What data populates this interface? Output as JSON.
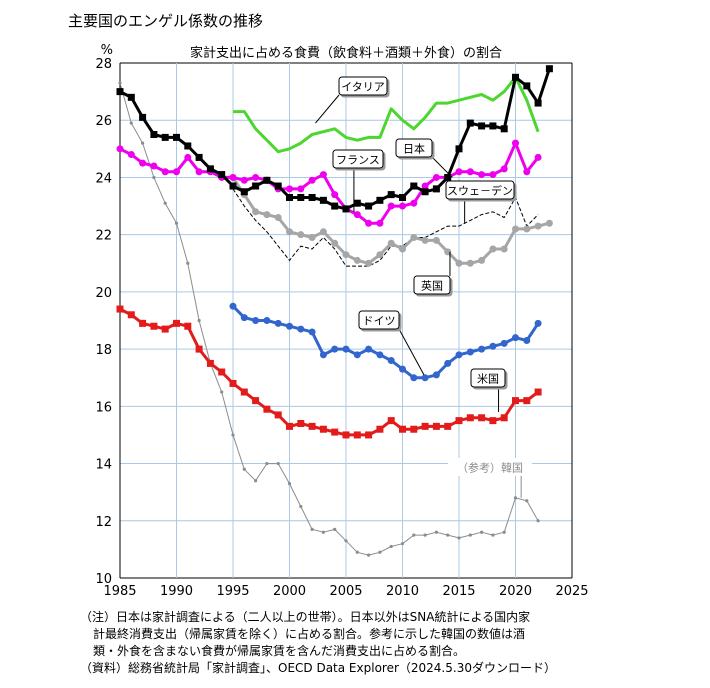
{
  "title": "主要国のエンゲル係数の推移",
  "chart_data": {
    "type": "line",
    "subtitle": "家計支出に占める食費（飲食料＋酒類＋外食）の割合",
    "ylabel": "%",
    "xlabel": "",
    "xlim": [
      1985,
      2025
    ],
    "ylim": [
      10,
      28
    ],
    "xticks": [
      "1985",
      "1990",
      "1995",
      "2000",
      "2005",
      "2010",
      "2015",
      "2020",
      "2025"
    ],
    "yticks": [
      "10",
      "12",
      "14",
      "16",
      "18",
      "20",
      "22",
      "24",
      "26",
      "28"
    ],
    "grid": true,
    "series": [
      {
        "name": "日本",
        "color": "#000000",
        "marker": "square",
        "x": [
          1985,
          1986,
          1987,
          1988,
          1989,
          1990,
          1991,
          1992,
          1993,
          1994,
          1995,
          1996,
          1997,
          1998,
          1999,
          2000,
          2001,
          2002,
          2003,
          2004,
          2005,
          2006,
          2007,
          2008,
          2009,
          2010,
          2011,
          2012,
          2013,
          2014,
          2015,
          2016,
          2017,
          2018,
          2019,
          2020,
          2021,
          2022,
          2023
        ],
        "y": [
          27.0,
          26.8,
          26.1,
          25.5,
          25.4,
          25.4,
          25.1,
          24.7,
          24.3,
          24.1,
          23.7,
          23.5,
          23.7,
          23.9,
          23.7,
          23.3,
          23.3,
          23.3,
          23.2,
          23.0,
          22.9,
          23.1,
          23.0,
          23.2,
          23.4,
          23.3,
          23.7,
          23.5,
          23.6,
          24.0,
          25.0,
          25.9,
          25.8,
          25.8,
          25.7,
          27.5,
          27.2,
          26.6,
          27.8
        ],
        "label_text": "日本"
      },
      {
        "name": "イタリア",
        "color": "#4cd62e",
        "marker": "none",
        "x": [
          1995,
          1996,
          1997,
          1998,
          1999,
          2000,
          2001,
          2002,
          2003,
          2004,
          2005,
          2006,
          2007,
          2008,
          2009,
          2010,
          2011,
          2012,
          2013,
          2014,
          2015,
          2016,
          2017,
          2018,
          2019,
          2020,
          2021,
          2022
        ],
        "y": [
          26.3,
          26.3,
          25.7,
          25.3,
          24.9,
          25.0,
          25.2,
          25.5,
          25.6,
          25.7,
          25.4,
          25.3,
          25.4,
          25.4,
          26.4,
          26.0,
          25.7,
          26.1,
          26.6,
          26.6,
          26.7,
          26.8,
          26.9,
          26.7,
          27.0,
          27.5,
          26.7,
          25.6
        ],
        "label_text": "イタリア"
      },
      {
        "name": "フランス",
        "color": "#ee00ee",
        "marker": "circle",
        "x": [
          1985,
          1986,
          1987,
          1988,
          1989,
          1990,
          1991,
          1992,
          1993,
          1994,
          1995,
          1996,
          1997,
          1998,
          1999,
          2000,
          2001,
          2002,
          2003,
          2004,
          2005,
          2006,
          2007,
          2008,
          2009,
          2010,
          2011,
          2012,
          2013,
          2014,
          2015,
          2016,
          2017,
          2018,
          2019,
          2020,
          2021,
          2022
        ],
        "y": [
          25.0,
          24.8,
          24.5,
          24.4,
          24.2,
          24.2,
          24.7,
          24.2,
          24.2,
          24.0,
          24.0,
          23.9,
          24.0,
          23.9,
          23.6,
          23.6,
          23.6,
          23.9,
          24.1,
          23.4,
          22.9,
          22.7,
          22.4,
          22.4,
          23.0,
          23.0,
          23.1,
          23.7,
          24.0,
          24.0,
          24.2,
          24.2,
          24.1,
          24.1,
          24.3,
          25.2,
          24.2,
          24.7
        ],
        "label_text": "フランス"
      },
      {
        "name": "スウェーデン",
        "color": "#000000",
        "marker": "none",
        "dash": true,
        "x": [
          1995,
          1996,
          1997,
          1998,
          1999,
          2000,
          2001,
          2002,
          2003,
          2004,
          2005,
          2006,
          2007,
          2008,
          2009,
          2010,
          2011,
          2012,
          2013,
          2014,
          2015,
          2016,
          2017,
          2018,
          2019,
          2020,
          2021,
          2022
        ],
        "y": [
          23.6,
          23.0,
          22.5,
          22.1,
          21.6,
          21.1,
          21.6,
          21.5,
          21.9,
          21.5,
          20.9,
          20.9,
          20.9,
          21.1,
          21.6,
          21.6,
          21.9,
          21.9,
          22.1,
          22.3,
          22.3,
          22.5,
          22.7,
          22.8,
          22.6,
          23.3,
          22.3,
          22.7
        ],
        "label_text": "スウェ－デン"
      },
      {
        "name": "英国",
        "color": "#a6a6a6",
        "marker": "circle",
        "x": [
          1995,
          1996,
          1997,
          1998,
          1999,
          2000,
          2001,
          2002,
          2003,
          2004,
          2005,
          2006,
          2007,
          2008,
          2009,
          2010,
          2011,
          2012,
          2013,
          2014,
          2015,
          2016,
          2017,
          2018,
          2019,
          2020,
          2021,
          2022,
          2023
        ],
        "y": [
          24.0,
          23.4,
          22.8,
          22.7,
          22.6,
          22.1,
          22.0,
          21.9,
          22.1,
          21.7,
          21.3,
          21.1,
          21.0,
          21.3,
          21.7,
          21.5,
          21.9,
          21.8,
          21.8,
          21.4,
          21.0,
          21.0,
          21.1,
          21.5,
          21.5,
          22.2,
          22.2,
          22.3,
          22.4
        ],
        "label_text": "英国"
      },
      {
        "name": "ドイツ",
        "color": "#3366cc",
        "marker": "circle",
        "x": [
          1995,
          1996,
          1997,
          1998,
          1999,
          2000,
          2001,
          2002,
          2003,
          2004,
          2005,
          2006,
          2007,
          2008,
          2009,
          2010,
          2011,
          2012,
          2013,
          2014,
          2015,
          2016,
          2017,
          2018,
          2019,
          2020,
          2021,
          2022
        ],
        "y": [
          19.5,
          19.1,
          19.0,
          19.0,
          18.9,
          18.8,
          18.7,
          18.6,
          17.8,
          18.0,
          18.0,
          17.8,
          18.0,
          17.8,
          17.6,
          17.3,
          17.0,
          17.0,
          17.1,
          17.5,
          17.8,
          17.9,
          18.0,
          18.1,
          18.2,
          18.4,
          18.3,
          18.9
        ],
        "label_text": "ドイツ"
      },
      {
        "name": "米国",
        "color": "#e21b1b",
        "marker": "square",
        "x": [
          1985,
          1986,
          1987,
          1988,
          1989,
          1990,
          1991,
          1992,
          1993,
          1994,
          1995,
          1996,
          1997,
          1998,
          1999,
          2000,
          2001,
          2002,
          2003,
          2004,
          2005,
          2006,
          2007,
          2008,
          2009,
          2010,
          2011,
          2012,
          2013,
          2014,
          2015,
          2016,
          2017,
          2018,
          2019,
          2020,
          2021,
          2022
        ],
        "y": [
          19.4,
          19.2,
          18.9,
          18.8,
          18.7,
          18.9,
          18.8,
          18.0,
          17.5,
          17.2,
          16.8,
          16.5,
          16.2,
          15.9,
          15.7,
          15.3,
          15.4,
          15.3,
          15.2,
          15.1,
          15.0,
          15.0,
          15.0,
          15.2,
          15.5,
          15.2,
          15.2,
          15.3,
          15.3,
          15.3,
          15.5,
          15.6,
          15.6,
          15.5,
          15.6,
          16.2,
          16.2,
          16.5
        ],
        "label_text": "米国"
      },
      {
        "name": "（参考）韓国",
        "color": "#8c8c8c",
        "marker": "dot",
        "x": [
          1985,
          1986,
          1987,
          1988,
          1989,
          1990,
          1991,
          1992,
          1993,
          1994,
          1995,
          1996,
          1997,
          1998,
          1999,
          2000,
          2001,
          2002,
          2003,
          2004,
          2005,
          2006,
          2007,
          2008,
          2009,
          2010,
          2011,
          2012,
          2013,
          2014,
          2015,
          2016,
          2017,
          2018,
          2019,
          2020,
          2021,
          2022
        ],
        "y": [
          27.3,
          25.9,
          25.2,
          24.0,
          23.1,
          22.4,
          21.0,
          19.0,
          17.5,
          16.5,
          15.0,
          13.8,
          13.4,
          14.0,
          14.0,
          13.3,
          12.5,
          11.7,
          11.6,
          11.7,
          11.3,
          10.9,
          10.8,
          10.9,
          11.1,
          11.2,
          11.5,
          11.5,
          11.6,
          11.5,
          11.4,
          11.5,
          11.6,
          11.5,
          11.6,
          12.8,
          12.7,
          12.0
        ],
        "label_text": "（参考）韓国"
      }
    ]
  },
  "notes": [
    "（注）日本は家計調査による（二人以上の世帯）。日本以外はSNA統計による国内家",
    "計最終消費支出（帰属家賃を除く）に占める割合。参考に示した韓国の数値は酒",
    "類・外食を含まない食費が帰属家賃を含んだ消費支出に占める割合。",
    "（資料）総務省統計局「家計調査」、OECD Data Explorer（2024.5.30ダウンロード）"
  ]
}
